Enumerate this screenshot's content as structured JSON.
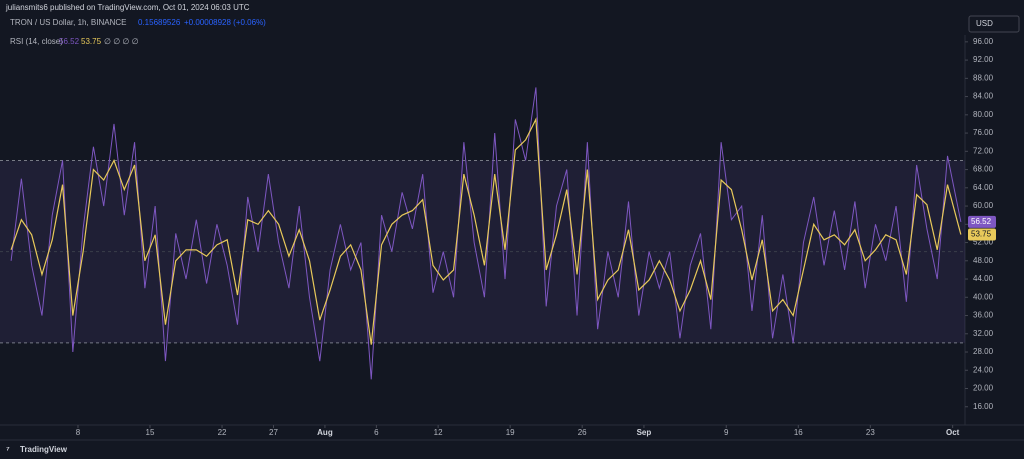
{
  "header": {
    "publisher": "juliansmits6 published on TradingView.com, Oct 01, 2024 06:03 UTC",
    "symbol": "TRON / US Dollar, 1h, BINANCE",
    "price": "0.15689526",
    "change": "+0.00008928 (+0.06%)"
  },
  "currency": "USD",
  "brand": "TradingView",
  "chart_data": {
    "type": "line",
    "title": "RSI (14, close)",
    "settings_icons": "∅ ∅ ∅ ∅",
    "x": [
      1.5,
      2.5,
      3.5,
      4.5,
      5.5,
      6.5,
      7.5,
      8.5,
      9.5,
      10.5,
      11.5,
      12.5,
      13.5,
      14.5,
      15.5,
      16.5,
      17.5,
      18.5,
      19.5,
      20.5,
      21.5,
      22.5,
      23.5,
      24.5,
      25.5,
      26.5,
      27.5,
      28.5,
      29.5,
      30.5,
      31.5,
      32.5,
      33.5,
      34.5,
      35.5,
      36.5,
      37.5,
      38.5,
      39.5,
      40.5,
      41.5,
      42.5,
      43.5,
      44.5,
      45.5,
      46.5,
      47.5,
      48.5,
      49.5,
      50.5,
      51.5,
      52.5,
      53.5,
      54.5,
      55.5,
      56.5,
      57.5,
      58.5,
      59.5,
      60.5,
      61.5,
      62.5,
      63.5,
      64.5,
      65.5,
      66.5,
      67.5,
      68.5,
      69.5,
      70.5,
      71.5,
      72.5,
      73.5,
      74.5,
      75.5,
      76.5,
      77.5,
      78.5,
      79.5,
      80.5,
      81.5,
      82.5,
      83.5,
      84.5,
      85.5,
      86.5,
      87.5,
      88.5,
      89.5,
      90.5,
      91.5,
      92.5,
      93.8
    ],
    "series": [
      {
        "color": "#7e57c2",
        "values": [
          48,
          66,
          47,
          36,
          58,
          70,
          28,
          55,
          73,
          60,
          78,
          58,
          74,
          42,
          60,
          26,
          54,
          44,
          57,
          43,
          56,
          47,
          34,
          62,
          50,
          67,
          52,
          42,
          60,
          40,
          26,
          46,
          56,
          46,
          52,
          22,
          58,
          50,
          63,
          55,
          67,
          41,
          50,
          40,
          74,
          52,
          40,
          76,
          44,
          79,
          70,
          86,
          38,
          60,
          68,
          36,
          74,
          33,
          50,
          40,
          61,
          36,
          50,
          42,
          50,
          31,
          47,
          54,
          33,
          74,
          57,
          60,
          37,
          58,
          31,
          45,
          30,
          52,
          62,
          47,
          59,
          46,
          61,
          42,
          56,
          48,
          60,
          39,
          69,
          55,
          44,
          71,
          56.52
        ]
      },
      {
        "color": "#e8c95a",
        "values": [
          50.4,
          57,
          53.7,
          45,
          52.6,
          64.7,
          36,
          50,
          68,
          65.7,
          70,
          63.6,
          69,
          48,
          53.7,
          34,
          48,
          50.4,
          50.4,
          49,
          51.5,
          52.6,
          40.5,
          57,
          56,
          59,
          56,
          49,
          54.8,
          48,
          35,
          41.6,
          49,
          51.5,
          46,
          29.6,
          51.5,
          56,
          58,
          59,
          61.4,
          47,
          43.8,
          46,
          67,
          58,
          47,
          67,
          50.4,
          72.3,
          74.5,
          79,
          46,
          53.7,
          63.6,
          45,
          68,
          39.5,
          43.8,
          46,
          54.8,
          41.6,
          43.8,
          48,
          43.8,
          37,
          41.6,
          48,
          39.5,
          65.7,
          63.6,
          54.8,
          43.8,
          52.6,
          37,
          39.5,
          36,
          46,
          56,
          52.6,
          53.7,
          51.5,
          54.8,
          48,
          50.4,
          53.7,
          52.6,
          45,
          62.5,
          60.3,
          50.4,
          64.7,
          53.75
        ]
      }
    ],
    "upper_band": 70,
    "middle_band": 50,
    "lower_band": 30,
    "xlim": [
      1.2,
      94.2
    ],
    "xticks": [
      {
        "value": 8,
        "label": "8"
      },
      {
        "value": 15,
        "label": "15"
      },
      {
        "value": 22,
        "label": "22"
      },
      {
        "value": 27,
        "label": "27"
      },
      {
        "value": 32,
        "label": "Aug"
      },
      {
        "value": 37,
        "label": "6"
      },
      {
        "value": 43,
        "label": "12"
      },
      {
        "value": 50,
        "label": "19"
      },
      {
        "value": 57,
        "label": "26"
      },
      {
        "value": 63,
        "label": "Sep"
      },
      {
        "value": 71,
        "label": "9"
      },
      {
        "value": 78,
        "label": "16"
      },
      {
        "value": 85,
        "label": "23"
      },
      {
        "value": 93,
        "label": "Oct"
      }
    ],
    "ylim": [
      12,
      97.5
    ],
    "yticks": [
      {
        "value": 16,
        "label": "16.00"
      },
      {
        "value": 20,
        "label": "20.00"
      },
      {
        "value": 24,
        "label": "24.00"
      },
      {
        "value": 28,
        "label": "28.00"
      },
      {
        "value": 32,
        "label": "32.00"
      },
      {
        "value": 36,
        "label": "36.00"
      },
      {
        "value": 40,
        "label": "40.00"
      },
      {
        "value": 44,
        "label": "44.00"
      },
      {
        "value": 48,
        "label": "48.00"
      },
      {
        "value": 52,
        "label": "52.00"
      },
      {
        "value": 56,
        "label": "56.00"
      },
      {
        "value": 60,
        "label": "60.00"
      },
      {
        "value": 64,
        "label": "64.00"
      },
      {
        "value": 68,
        "label": "68.00"
      },
      {
        "value": 72,
        "label": "72.00"
      },
      {
        "value": 76,
        "label": "76.00"
      },
      {
        "value": 80,
        "label": "80.00"
      },
      {
        "value": 84,
        "label": "84.00"
      },
      {
        "value": 88,
        "label": "88.00"
      },
      {
        "value": 92,
        "label": "92.00"
      },
      {
        "value": 96,
        "label": "96.00"
      }
    ]
  }
}
